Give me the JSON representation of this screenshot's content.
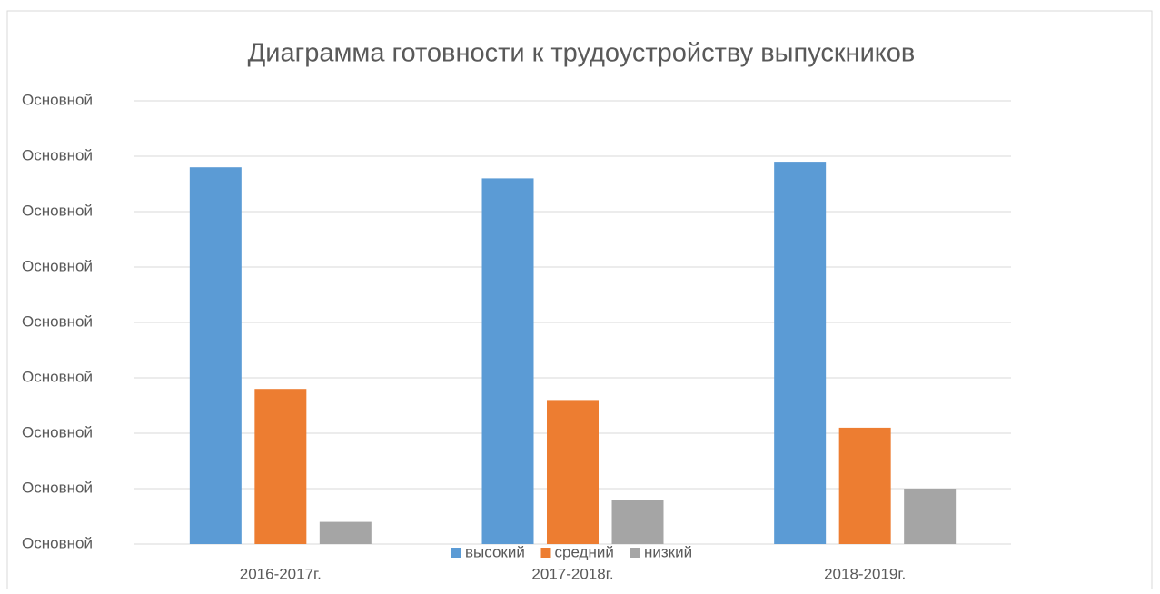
{
  "chart_data": {
    "type": "bar",
    "title": "Диаграмма готовности к трудоустройству выпускников",
    "categories": [
      "2016-2017г.",
      "2017-2018г.",
      "2018-2019г."
    ],
    "series": [
      {
        "name": "высокий",
        "color": "#5b9bd5",
        "values": [
          68,
          66,
          69
        ]
      },
      {
        "name": "средний",
        "color": "#ed7d31",
        "values": [
          28,
          26,
          21
        ]
      },
      {
        "name": "низкий",
        "color": "#a5a5a5",
        "values": [
          4,
          8,
          10
        ]
      }
    ],
    "ylim": [
      0,
      80
    ],
    "yticks": [
      {
        "value": 0,
        "label": "Основной"
      },
      {
        "value": 10,
        "label": "Основной"
      },
      {
        "value": 20,
        "label": "Основной"
      },
      {
        "value": 30,
        "label": "Основной"
      },
      {
        "value": 40,
        "label": "Основной"
      },
      {
        "value": 50,
        "label": "Основной"
      },
      {
        "value": 60,
        "label": "Основной"
      },
      {
        "value": 70,
        "label": "Основной"
      },
      {
        "value": 80,
        "label": "Основной"
      }
    ],
    "grid": true,
    "legend": "bottom"
  }
}
